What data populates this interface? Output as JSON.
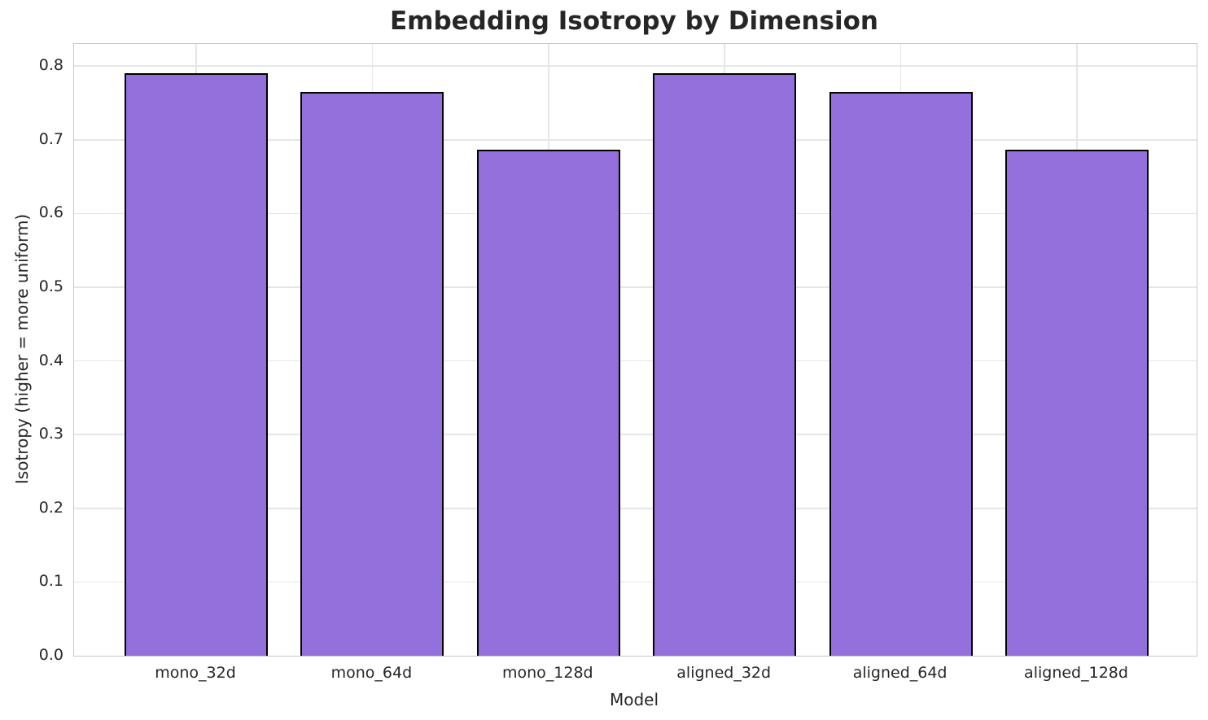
{
  "chart_data": {
    "type": "bar",
    "title": "Embedding Isotropy by Dimension",
    "xlabel": "Model",
    "ylabel": "Isotropy (higher = more uniform)",
    "categories": [
      "mono_32d",
      "mono_64d",
      "mono_128d",
      "aligned_32d",
      "aligned_64d",
      "aligned_128d"
    ],
    "values": [
      0.79,
      0.765,
      0.686,
      0.79,
      0.765,
      0.686
    ],
    "ylim": [
      0,
      0.83
    ],
    "yticks": [
      0.0,
      0.1,
      0.2,
      0.3,
      0.4,
      0.5,
      0.6,
      0.7,
      0.8
    ],
    "grid": true,
    "legend": "none",
    "colors": {
      "bar_fill": "#9370DB",
      "bar_edge": "#000000",
      "gridline": "#e6e6e6",
      "spine": "#c9c9c9",
      "text": "#262626"
    }
  }
}
